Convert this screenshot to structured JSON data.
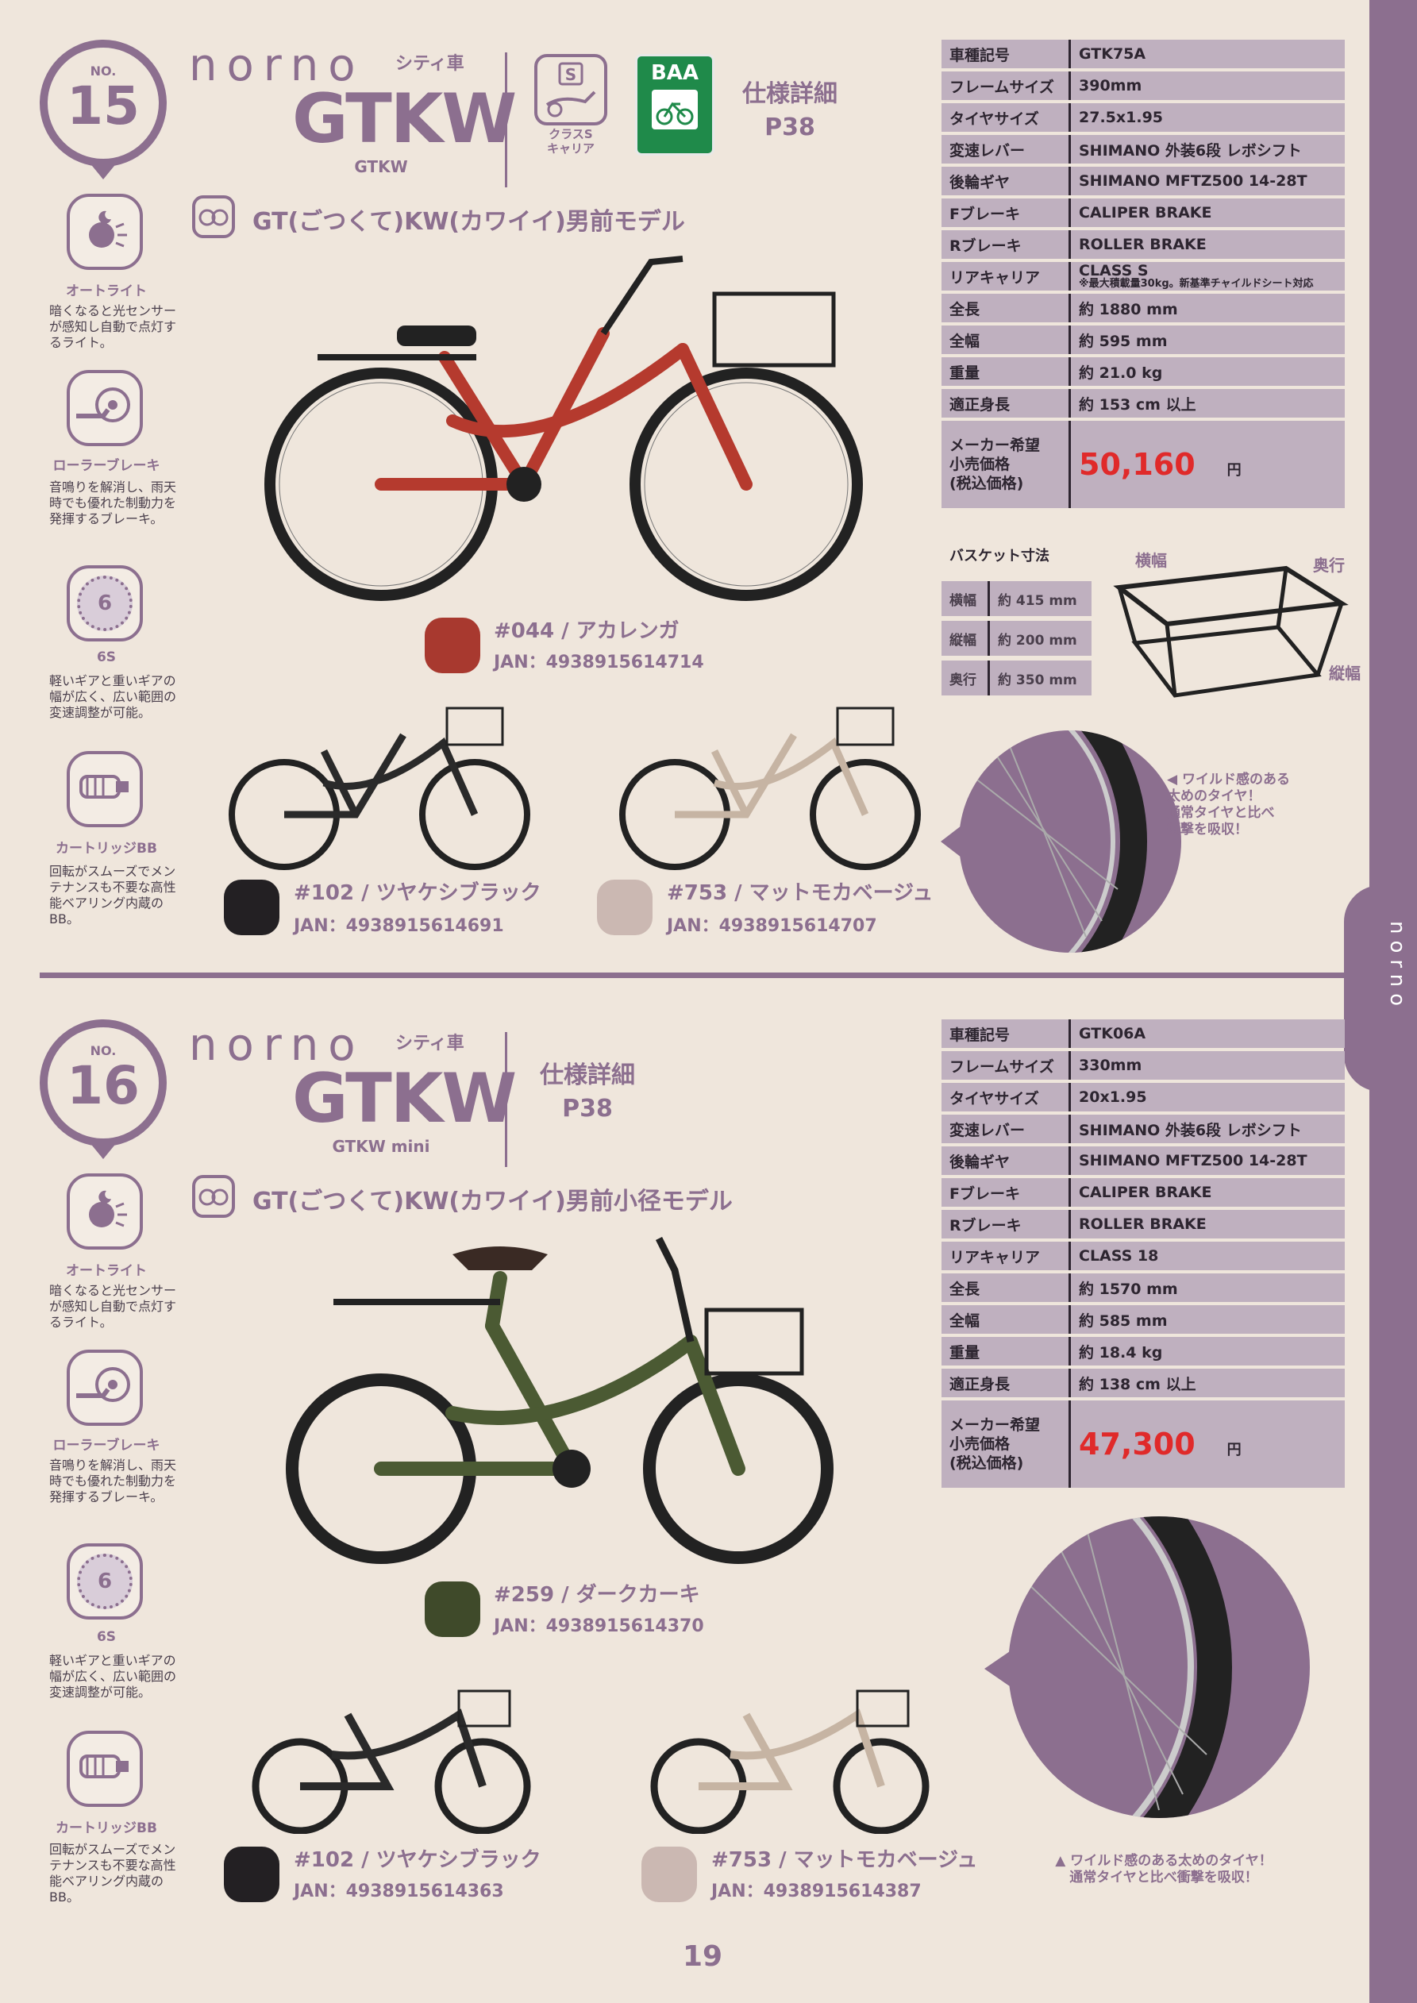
{
  "page_number": "19",
  "side_tab": "norno",
  "products": [
    {
      "no_label": "NO.",
      "number": "15",
      "brand": "norno",
      "category": "シティ車",
      "model": "GTKW",
      "model_sub": "GTKW",
      "class_icon_label": "クラスS\nキャリア",
      "baa_label": "BAA",
      "spec_ref_line1": "仕様詳細",
      "spec_ref_line2": "P38",
      "tagline": "GT(ごつくて)KW(カワイイ)男前モデル",
      "features": [
        {
          "icon": "auto-light-icon",
          "title": "オートライト",
          "desc": "暗くなると光センサーが感知し自動で点灯するライト。"
        },
        {
          "icon": "roller-brake-icon",
          "title": "ローラーブレーキ",
          "desc": "音鳴りを解消し、雨天時でも優れた制動力を発揮するブレーキ。"
        },
        {
          "icon": "six-speed-icon",
          "icon_text": "6",
          "title": "6S",
          "desc": "軽いギアと重いギアの幅が広く、広い範囲の変速調整が可能。"
        },
        {
          "icon": "cartridge-bb-icon",
          "title": "カートリッジBB",
          "desc": "回転がスムーズでメンテナンスも不要な高性能ベアリング内蔵のBB。"
        }
      ],
      "specs": [
        {
          "k": "車種記号",
          "v": "GTK75A"
        },
        {
          "k": "フレームサイズ",
          "v": "390mm"
        },
        {
          "k": "タイヤサイズ",
          "v": "27.5x1.95"
        },
        {
          "k": "変速レバー",
          "v": "SHIMANO 外装6段 レボシフト"
        },
        {
          "k": "後輪ギヤ",
          "v": "SHIMANO MFTZ500 14-28T"
        },
        {
          "k": "Fブレーキ",
          "v": "CALIPER BRAKE"
        },
        {
          "k": "Rブレーキ",
          "v": "ROLLER BRAKE"
        },
        {
          "k": "リアキャリア",
          "v": "CLASS S",
          "note": "※最大積載量30kg。新基準チャイルドシート対応"
        },
        {
          "k": "全長",
          "v": "約 1880 mm"
        },
        {
          "k": "全幅",
          "v": "約 595 mm"
        },
        {
          "k": "重量",
          "v": "約 21.0 kg"
        },
        {
          "k": "適正身長",
          "v": "約 153 cm 以上"
        }
      ],
      "price_label": "メーカー希望\n小売価格\n(税込価格)",
      "price": "50,160",
      "price_unit": "円",
      "colors": [
        {
          "name": "#044 / アカレンガ",
          "jan": "JAN：4938915614714",
          "hex": "#a8392f",
          "frame": "#b53a2e"
        },
        {
          "name": "#102 / ツヤケシブラック",
          "jan": "JAN：4938915614691",
          "hex": "#232023",
          "frame": "#2a2a2a"
        },
        {
          "name": "#753 / マットモカベージュ",
          "jan": "JAN：4938915614707",
          "hex": "#cbb8b2",
          "frame": "#c6b4a3"
        }
      ],
      "basket": {
        "title": "バスケット寸法",
        "rows": [
          {
            "k": "横幅",
            "v": "約 415 mm"
          },
          {
            "k": "縦幅",
            "v": "約 200 mm"
          },
          {
            "k": "奥行",
            "v": "約 350 mm"
          }
        ],
        "labels": {
          "w": "横幅",
          "d": "奥行",
          "h": "縦幅"
        }
      },
      "tire_note": "◀ ワイルド感のある\n太めのタイヤ！\n通常タイヤと比べ\n衝撃を吸収！"
    },
    {
      "no_label": "NO.",
      "number": "16",
      "brand": "norno",
      "category": "シティ車",
      "model": "GTKW",
      "model_sub": "GTKW mini",
      "spec_ref_line1": "仕様詳細",
      "spec_ref_line2": "P38",
      "tagline": "GT(ごつくて)KW(カワイイ)男前小径モデル",
      "features": [
        {
          "icon": "auto-light-icon",
          "title": "オートライト",
          "desc": "暗くなると光センサーが感知し自動で点灯するライト。"
        },
        {
          "icon": "roller-brake-icon",
          "title": "ローラーブレーキ",
          "desc": "音鳴りを解消し、雨天時でも優れた制動力を発揮するブレーキ。"
        },
        {
          "icon": "six-speed-icon",
          "icon_text": "6",
          "title": "6S",
          "desc": "軽いギアと重いギアの幅が広く、広い範囲の変速調整が可能。"
        },
        {
          "icon": "cartridge-bb-icon",
          "title": "カートリッジBB",
          "desc": "回転がスムーズでメンテナンスも不要な高性能ベアリング内蔵のBB。"
        }
      ],
      "specs": [
        {
          "k": "車種記号",
          "v": "GTK06A"
        },
        {
          "k": "フレームサイズ",
          "v": "330mm"
        },
        {
          "k": "タイヤサイズ",
          "v": "20x1.95"
        },
        {
          "k": "変速レバー",
          "v": "SHIMANO 外装6段 レボシフト"
        },
        {
          "k": "後輪ギヤ",
          "v": "SHIMANO MFTZ500 14-28T"
        },
        {
          "k": "Fブレーキ",
          "v": "CALIPER BRAKE"
        },
        {
          "k": "Rブレーキ",
          "v": "ROLLER BRAKE"
        },
        {
          "k": "リアキャリア",
          "v": "CLASS 18"
        },
        {
          "k": "全長",
          "v": "約 1570 mm"
        },
        {
          "k": "全幅",
          "v": "約 585 mm"
        },
        {
          "k": "重量",
          "v": "約 18.4 kg"
        },
        {
          "k": "適正身長",
          "v": "約 138 cm 以上"
        }
      ],
      "price_label": "メーカー希望\n小売価格\n(税込価格)",
      "price": "47,300",
      "price_unit": "円",
      "colors": [
        {
          "name": "#259 / ダークカーキ",
          "jan": "JAN：4938915614370",
          "hex": "#3f4a2a",
          "frame": "#4b5a33"
        },
        {
          "name": "#102 / ツヤケシブラック",
          "jan": "JAN：4938915614363",
          "hex": "#232023",
          "frame": "#2a2a2a"
        },
        {
          "name": "#753 / マットモカベージュ",
          "jan": "JAN：4938915614387",
          "hex": "#cbb8b2",
          "frame": "#c6b4a3"
        }
      ],
      "tire_note": "▲ ワイルド感のある太めのタイヤ！\n通常タイヤと比べ衝撃を吸収！"
    }
  ]
}
